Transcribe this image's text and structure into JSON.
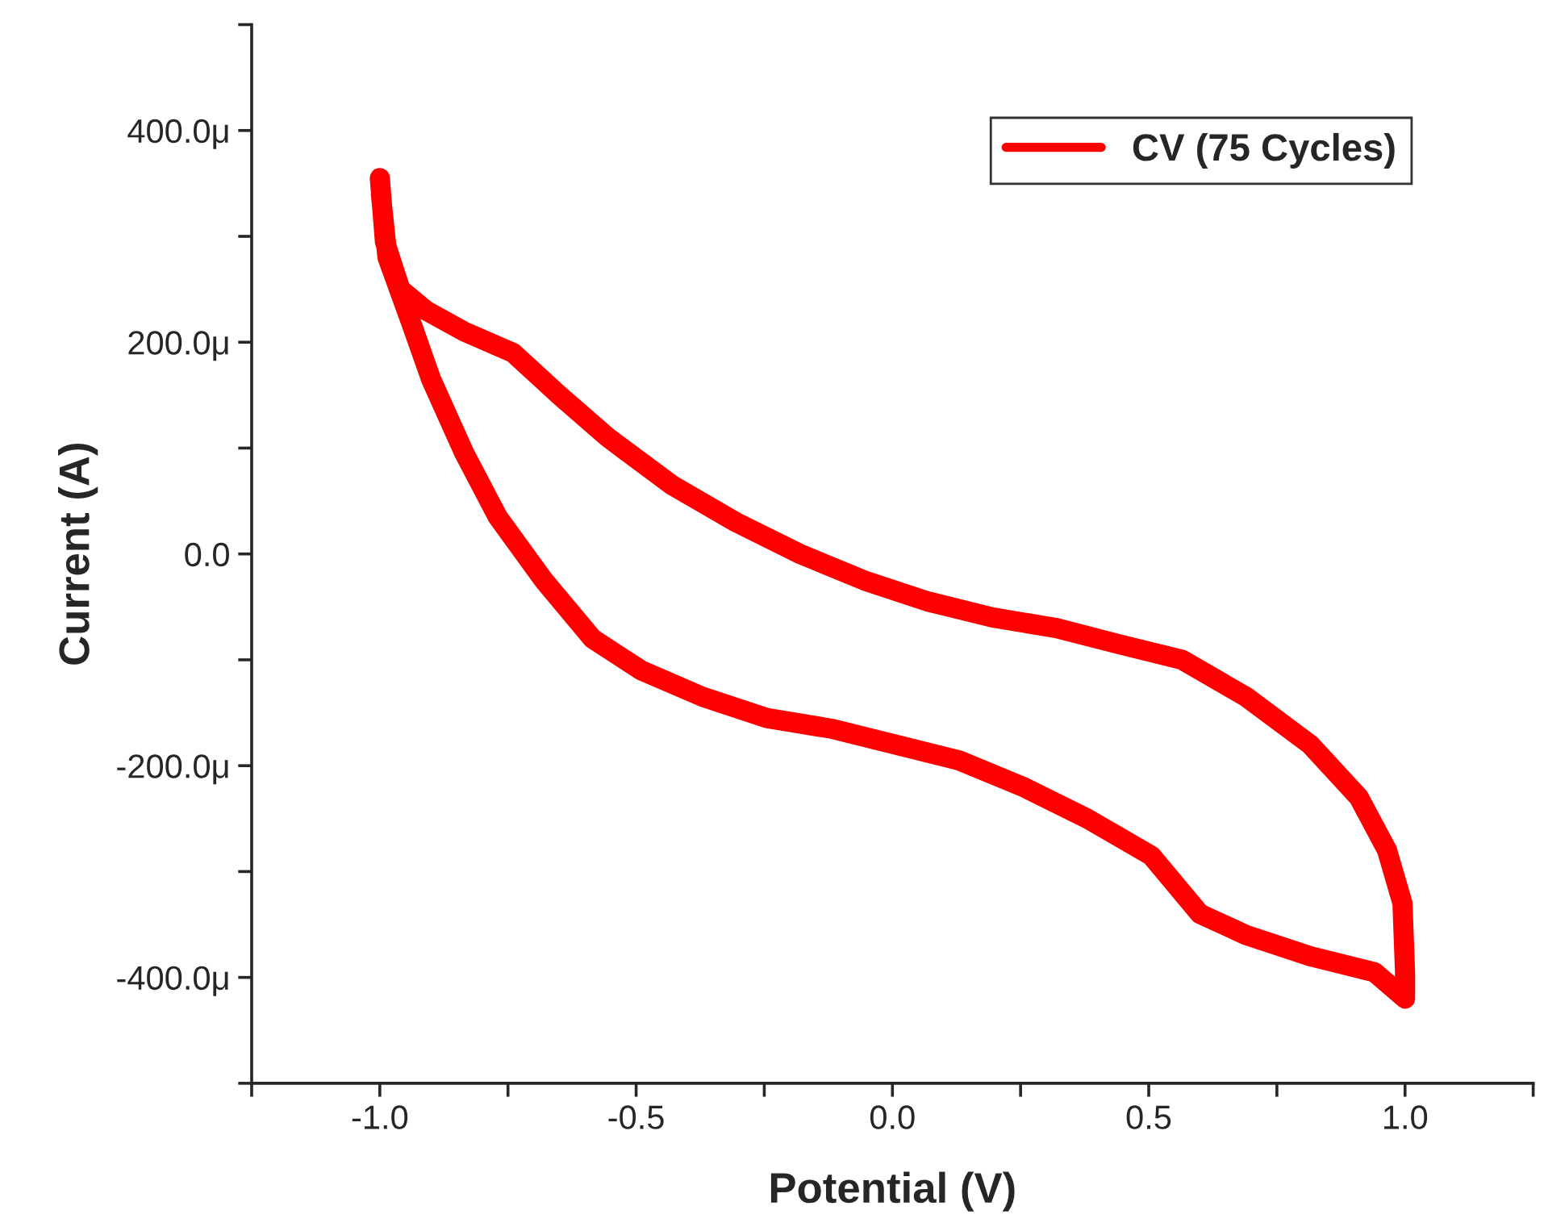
{
  "chart_data": {
    "type": "line",
    "xlabel": "Potential (V)",
    "ylabel": "Current (A)",
    "xlim": [
      -1.25,
      1.25
    ],
    "ylim": [
      -500,
      500
    ],
    "xticks": [
      {
        "value": -1.25,
        "label": null
      },
      {
        "value": -1.0,
        "label": "-1.0"
      },
      {
        "value": -0.75,
        "label": null
      },
      {
        "value": -0.5,
        "label": "-0.5"
      },
      {
        "value": -0.25,
        "label": null
      },
      {
        "value": 0.0,
        "label": "0.0"
      },
      {
        "value": 0.25,
        "label": null
      },
      {
        "value": 0.5,
        "label": "0.5"
      },
      {
        "value": 0.75,
        "label": null
      },
      {
        "value": 1.0,
        "label": "1.0"
      },
      {
        "value": 1.25,
        "label": null
      }
    ],
    "yticks": [
      {
        "value": -500,
        "label": null
      },
      {
        "value": -400,
        "label": "-400.0μ"
      },
      {
        "value": -300,
        "label": null
      },
      {
        "value": -200,
        "label": "-200.0μ"
      },
      {
        "value": -100,
        "label": null
      },
      {
        "value": 0,
        "label": "0.0"
      },
      {
        "value": 100,
        "label": null
      },
      {
        "value": 200,
        "label": "200.0μ"
      },
      {
        "value": 300,
        "label": null
      },
      {
        "value": 400,
        "label": "400.0μ"
      },
      {
        "value": 500,
        "label": null
      }
    ],
    "grid": false,
    "legend": "top right",
    "marker": "none",
    "line_style": "solid",
    "series": [
      {
        "name": "CV (75 Cycles)",
        "color": "#ff0000",
        "x": [
          -1.0,
          -0.99,
          -0.96,
          -0.91,
          -0.835,
          -0.74,
          -0.65,
          -0.555,
          -0.43,
          -0.305,
          -0.18,
          -0.055,
          0.07,
          0.195,
          0.32,
          0.44,
          0.565,
          0.69,
          0.815,
          0.91,
          0.965,
          0.995,
          1.0,
          1.0,
          0.94,
          0.815,
          0.69,
          0.6,
          0.505,
          0.38,
          0.255,
          0.13,
          0.005,
          -0.12,
          -0.245,
          -0.37,
          -0.49,
          -0.585,
          -0.68,
          -0.77,
          -0.835,
          -0.9,
          -0.94,
          -0.985,
          -0.998
        ],
        "values": [
          355,
          295,
          250,
          230,
          210,
          190,
          150,
          110,
          65,
          30,
          0,
          -25,
          -45,
          -60,
          -70,
          -85,
          -100,
          -135,
          -180,
          -230,
          -280,
          -330,
          -395,
          -420,
          -395,
          -380,
          -360,
          -340,
          -285,
          -250,
          -220,
          -195,
          -180,
          -165,
          -155,
          -135,
          -110,
          -80,
          -25,
          35,
          95,
          165,
          220,
          280,
          340
        ]
      }
    ]
  }
}
